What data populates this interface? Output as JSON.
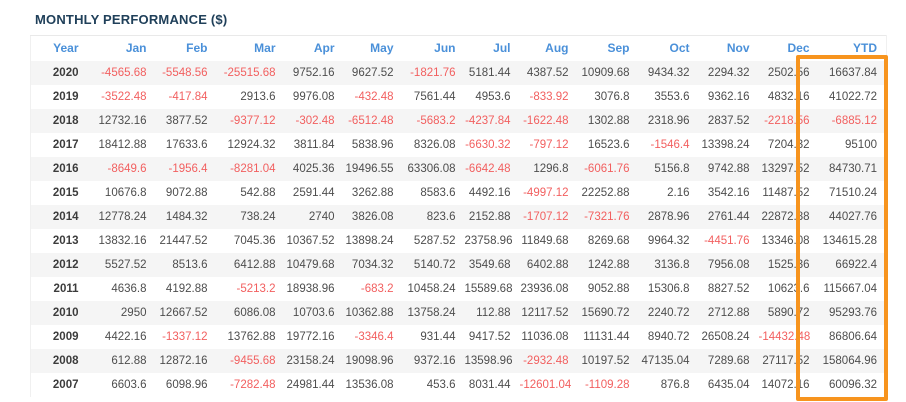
{
  "title": "MONTHLY PERFORMANCE ($)",
  "colors": {
    "title": "#20405a",
    "header_text": "#4a90d9",
    "positive": "#4d4d4d",
    "negative": "#f25f5f",
    "row_stripe": "#f5f5f5",
    "highlight_box": "#f7941e"
  },
  "table": {
    "columns": [
      "Year",
      "Jan",
      "Feb",
      "Mar",
      "Apr",
      "May",
      "Jun",
      "Jul",
      "Aug",
      "Sep",
      "Oct",
      "Nov",
      "Dec",
      "YTD"
    ],
    "highlighted_column": "YTD",
    "rows": [
      {
        "year": "2020",
        "values": [
          "-4565.68",
          "-5548.56",
          "-25515.68",
          "9752.16",
          "9627.52",
          "-1821.76",
          "5181.44",
          "4387.52",
          "10909.68",
          "9434.32",
          "2294.32",
          "2502.56"
        ],
        "ytd": "16637.84"
      },
      {
        "year": "2019",
        "values": [
          "-3522.48",
          "-417.84",
          "2913.6",
          "9976.08",
          "-432.48",
          "7561.44",
          "4953.6",
          "-833.92",
          "3076.8",
          "3553.6",
          "9362.16",
          "4832.16"
        ],
        "ytd": "41022.72"
      },
      {
        "year": "2018",
        "values": [
          "12732.16",
          "3877.52",
          "-9377.12",
          "-302.48",
          "-6512.48",
          "-5683.2",
          "-4237.84",
          "-1622.48",
          "1302.88",
          "2318.96",
          "2837.52",
          "-2218.56"
        ],
        "ytd": "-6885.12"
      },
      {
        "year": "2017",
        "values": [
          "18412.88",
          "17633.6",
          "12924.32",
          "3811.84",
          "5838.96",
          "8326.08",
          "-6630.32",
          "-797.12",
          "16523.6",
          "-1546.4",
          "13398.24",
          "7204.32"
        ],
        "ytd": "95100"
      },
      {
        "year": "2016",
        "values": [
          "-8649.6",
          "-1956.4",
          "-8281.04",
          "4025.36",
          "19496.55",
          "63306.08",
          "-6642.48",
          "1296.8",
          "-6061.76",
          "5156.8",
          "9742.88",
          "13297.52"
        ],
        "ytd": "84730.71"
      },
      {
        "year": "2015",
        "values": [
          "10676.8",
          "9072.88",
          "542.88",
          "2591.44",
          "3262.88",
          "8583.6",
          "4492.16",
          "-4997.12",
          "22252.88",
          "2.16",
          "3542.16",
          "11487.52"
        ],
        "ytd": "71510.24"
      },
      {
        "year": "2014",
        "values": [
          "12778.24",
          "1484.32",
          "738.24",
          "2740",
          "3826.08",
          "823.6",
          "2152.88",
          "-1707.12",
          "-7321.76",
          "2878.96",
          "2761.44",
          "22872.88"
        ],
        "ytd": "44027.76"
      },
      {
        "year": "2013",
        "values": [
          "13832.16",
          "21447.52",
          "7045.36",
          "10367.52",
          "13898.24",
          "5287.52",
          "23758.96",
          "11849.68",
          "8269.68",
          "9964.32",
          "-4451.76",
          "13346.08"
        ],
        "ytd": "134615.28"
      },
      {
        "year": "2012",
        "values": [
          "5527.52",
          "8513.6",
          "6412.88",
          "10479.68",
          "7034.32",
          "5140.72",
          "3549.68",
          "6402.88",
          "1242.88",
          "3136.8",
          "7956.08",
          "1525.36"
        ],
        "ytd": "66922.4"
      },
      {
        "year": "2011",
        "values": [
          "4636.8",
          "4192.88",
          "-5213.2",
          "18938.96",
          "-683.2",
          "10458.24",
          "15589.68",
          "23936.08",
          "9052.88",
          "15306.8",
          "8827.52",
          "10623.6"
        ],
        "ytd": "115667.04"
      },
      {
        "year": "2010",
        "values": [
          "2950",
          "12667.52",
          "6086.08",
          "10703.6",
          "10362.88",
          "13758.24",
          "112.88",
          "12117.52",
          "15690.72",
          "2240.72",
          "2712.88",
          "5890.72"
        ],
        "ytd": "95293.76"
      },
      {
        "year": "2009",
        "values": [
          "4422.16",
          "-1337.12",
          "13762.88",
          "19772.16",
          "-3346.4",
          "931.44",
          "9417.52",
          "11036.08",
          "11131.44",
          "8940.72",
          "26508.24",
          "-14432.48"
        ],
        "ytd": "86806.64"
      },
      {
        "year": "2008",
        "values": [
          "612.88",
          "12872.16",
          "-9455.68",
          "23158.24",
          "19098.96",
          "9372.16",
          "13598.96",
          "-2932.48",
          "10197.52",
          "47135.04",
          "7289.68",
          "27117.52"
        ],
        "ytd": "158064.96"
      },
      {
        "year": "2007",
        "values": [
          "6603.6",
          "6098.96",
          "-7282.48",
          "24981.44",
          "13536.08",
          "453.6",
          "8031.44",
          "-12601.04",
          "-1109.28",
          "876.8",
          "6435.04",
          "14072.16"
        ],
        "ytd": "60096.32"
      }
    ]
  }
}
